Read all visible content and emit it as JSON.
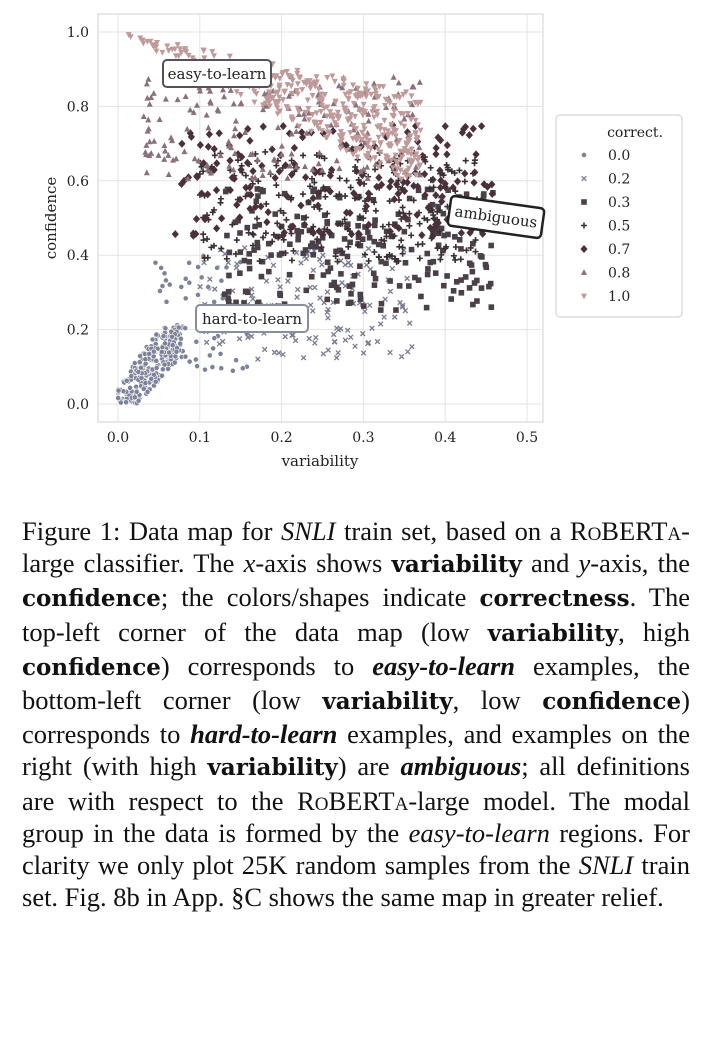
{
  "chart_data": {
    "type": "scatter",
    "xlabel": "variability",
    "ylabel": "confidence",
    "xlim": [
      -0.02,
      0.52
    ],
    "ylim": [
      -0.04,
      1.04
    ],
    "xticks": [
      "0.0",
      "0.1",
      "0.2",
      "0.3",
      "0.4",
      "0.5"
    ],
    "yticks": [
      "0.0",
      "0.2",
      "0.4",
      "0.6",
      "0.8",
      "1.0"
    ],
    "grid": true,
    "legend": {
      "title": "correct.",
      "placement": "right",
      "entries": [
        {
          "label": "0.0",
          "marker": "circle"
        },
        {
          "label": "0.2",
          "marker": "x"
        },
        {
          "label": "0.3",
          "marker": "square"
        },
        {
          "label": "0.5",
          "marker": "plus"
        },
        {
          "label": "0.7",
          "marker": "diamond"
        },
        {
          "label": "0.8",
          "marker": "triangle-up"
        },
        {
          "label": "1.0",
          "marker": "triangle-down"
        }
      ]
    },
    "annotations": [
      {
        "text": "easy-to-learn",
        "x": 0.105,
        "y": 0.88
      },
      {
        "text": "ambiguous",
        "x": 0.46,
        "y": 0.51
      },
      {
        "text": "hard-to-learn",
        "x": 0.145,
        "y": 0.23
      }
    ],
    "colors": {
      "c0.0": "#7d8299",
      "c0.2": "#7a7b92",
      "c0.3": "#4a4048",
      "c0.5": "#3a3034",
      "c0.7": "#4a3038",
      "c0.8": "#8a7078",
      "c1.0": "#c09a9a"
    },
    "series": [
      {
        "name": "0.0",
        "regions": [
          {
            "xmin": 0.0,
            "xmax": 0.08,
            "ymin": 0.0,
            "ymax": 0.22,
            "n": 220,
            "diag": 2.6
          },
          {
            "xmin": 0.04,
            "xmax": 0.16,
            "ymin": 0.08,
            "ymax": 0.4,
            "n": 60
          }
        ]
      },
      {
        "name": "0.2",
        "regions": [
          {
            "xmin": 0.1,
            "xmax": 0.36,
            "ymin": 0.12,
            "ymax": 0.42,
            "n": 150
          }
        ]
      },
      {
        "name": "0.3",
        "regions": [
          {
            "xmin": 0.13,
            "xmax": 0.46,
            "ymin": 0.25,
            "ymax": 0.58,
            "n": 230
          }
        ]
      },
      {
        "name": "0.5",
        "regions": [
          {
            "xmin": 0.1,
            "xmax": 0.44,
            "ymin": 0.38,
            "ymax": 0.68,
            "n": 260
          }
        ]
      },
      {
        "name": "0.7",
        "regions": [
          {
            "xmin": 0.07,
            "xmax": 0.46,
            "ymin": 0.45,
            "ymax": 0.75,
            "n": 200
          }
        ]
      },
      {
        "name": "0.8",
        "regions": [
          {
            "xmin": 0.03,
            "xmax": 0.37,
            "ymin": 0.6,
            "ymax": 0.88,
            "n": 180
          }
        ]
      },
      {
        "name": "1.0",
        "regions": [
          {
            "xmin": 0.0,
            "xmax": 0.37,
            "ymin": 0.6,
            "ymax": 1.0,
            "n": 420,
            "wedge": true
          }
        ]
      }
    ]
  },
  "caption": {
    "p01": "Figure 1:  Data map for ",
    "p02": "SNLI",
    "p03": " train set, based on a ",
    "p04": "RoBERTa",
    "p05": "-large classifier.  The ",
    "p06": "x",
    "p07": "-axis shows ",
    "p08": "variability",
    "p09": " and ",
    "p10": "y",
    "p11": "-axis, the ",
    "p12": "confidence",
    "p13": "; the colors/shapes indicate ",
    "p14": "correctness",
    "p15": ". The top-left corner of the data map (low ",
    "p16": "variability",
    "p17": ", high ",
    "p18": "confidence",
    "p19": ") corresponds to ",
    "p20": "easy-to-learn",
    "p21": " examples, the bottom-left corner (low ",
    "p22": "variability",
    "p23": ", low ",
    "p24": "confidence",
    "p25": ") corresponds to ",
    "p26": "hard-to-learn",
    "p27": " examples, and examples on the right (with high ",
    "p28": "variability",
    "p29": ") are ",
    "p30": "ambiguous",
    "p31": "; all definitions are with respect to the ",
    "p32": "RoBERTa",
    "p33": "-large model.  The modal group in the data is formed by the ",
    "p34": "easy-to-learn",
    "p35": " regions.  For clarity we only plot 25K random samples from the ",
    "p36": "SNLI",
    "p37": " train set.  Fig. 8b in App. §C shows the same map in greater relief."
  }
}
